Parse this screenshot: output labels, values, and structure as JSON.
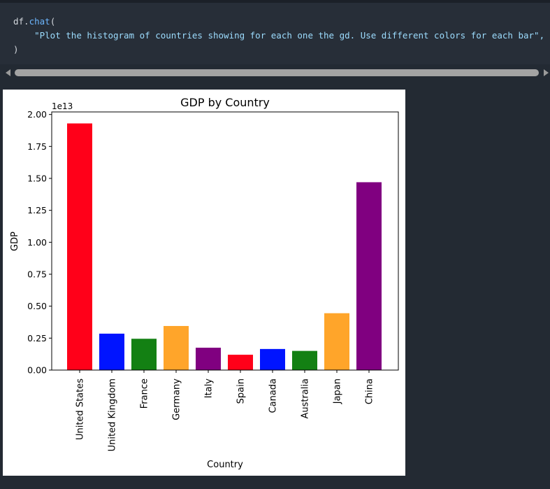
{
  "code": {
    "line1_obj": "df.",
    "line1_fn": "chat",
    "line1_paren": "(",
    "line2_string": "\"Plot the histogram of countries showing for each one the gd. Use different colors for each bar\",",
    "line3": ")"
  },
  "chart_data": {
    "type": "bar",
    "title": "GDP by Country",
    "xlabel": "Country",
    "ylabel": "GDP",
    "offset_label": "1e13",
    "ylim": [
      0,
      2.02
    ],
    "yticks": [
      "0.00",
      "0.25",
      "0.50",
      "0.75",
      "1.00",
      "1.25",
      "1.50",
      "1.75",
      "2.00"
    ],
    "categories": [
      "United States",
      "United Kingdom",
      "France",
      "Germany",
      "Italy",
      "Spain",
      "Canada",
      "Australia",
      "Japan",
      "China"
    ],
    "values": [
      1.93,
      0.285,
      0.245,
      0.345,
      0.175,
      0.12,
      0.165,
      0.15,
      0.445,
      1.47
    ],
    "colors": [
      "#ff0019",
      "#0014ff",
      "#138013",
      "#ffa52a",
      "#800080",
      "#ff0019",
      "#0014ff",
      "#138013",
      "#ffa52a",
      "#800080"
    ],
    "grid": false
  }
}
